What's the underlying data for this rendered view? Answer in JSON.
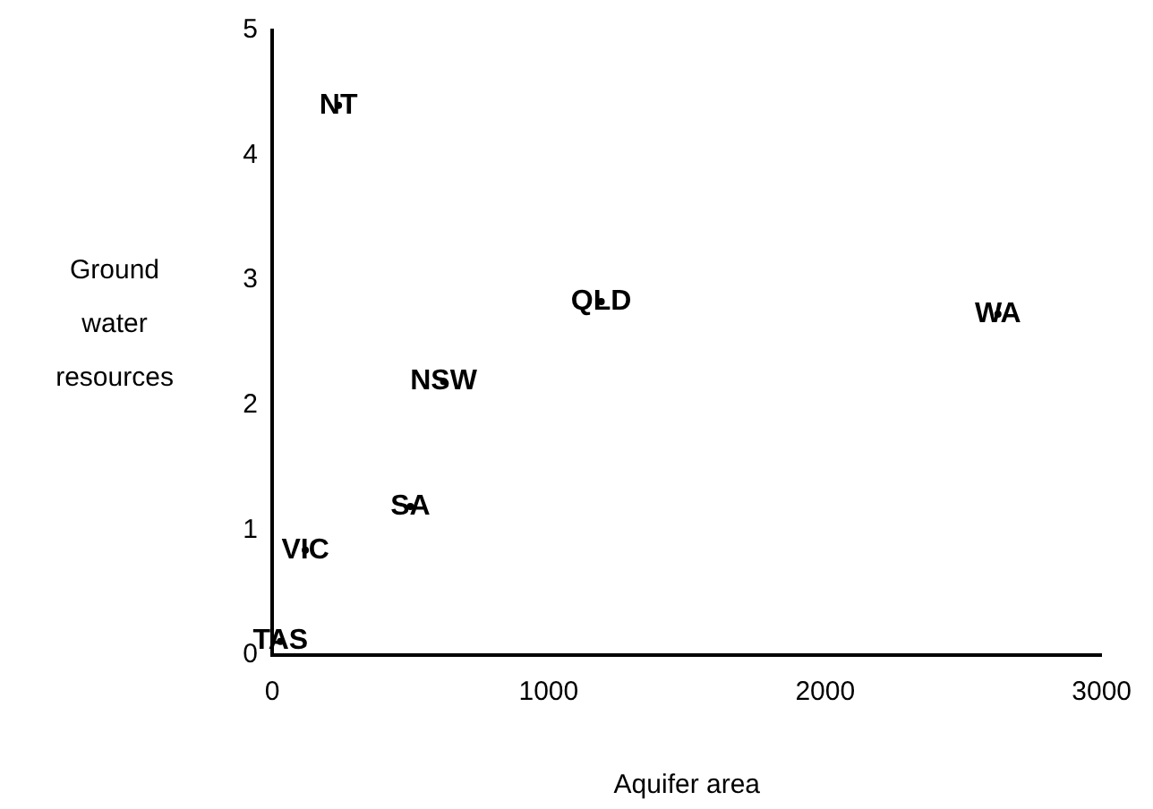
{
  "chart_data": {
    "type": "scatter",
    "xlabel": "Aquifer area",
    "ylabel": "Ground water resources",
    "xlim": [
      0,
      3000
    ],
    "xticks": [
      0,
      1000,
      2000,
      3000
    ],
    "ylim": [
      0,
      5
    ],
    "yticks": [
      0,
      1,
      2,
      3,
      4,
      5
    ],
    "grid": false,
    "legend": false,
    "series": [
      {
        "color": "#000000",
        "x": [
          240,
          1190,
          2625,
          620,
          500,
          120,
          30
        ],
        "values": [
          4.4,
          2.83,
          2.73,
          2.19,
          1.19,
          0.84,
          0.11
        ],
        "value_labels": [
          "NT",
          "QLD",
          "WA",
          "NSW",
          "SA",
          "VIC",
          "TAS"
        ]
      }
    ]
  }
}
